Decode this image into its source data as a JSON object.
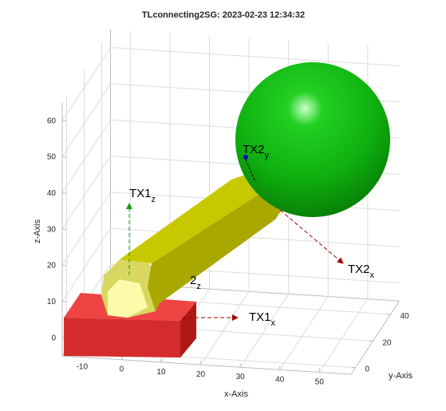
{
  "chart_data": {
    "type": "scene3d",
    "title": "TLconnecting2SG: 2023-02-23 12:34:32",
    "xlabel": "x-Axis",
    "ylabel": "y-Axis",
    "zlabel": "z-Axis",
    "xlim": [
      -15,
      58
    ],
    "ylim": [
      -5,
      50
    ],
    "zlim": [
      -5,
      65
    ],
    "xticks": [
      -10,
      0,
      10,
      20,
      30,
      40,
      50
    ],
    "yticks": [
      0,
      20,
      40
    ],
    "zticks": [
      0,
      10,
      20,
      30,
      40,
      50,
      60
    ],
    "grid": true,
    "annotations": [
      {
        "text": "TX1",
        "sub": "z"
      },
      {
        "text": "TX1",
        "sub": "x"
      },
      {
        "text": "TX2",
        "sub": "x"
      },
      {
        "text": "TX2",
        "sub": "y"
      },
      {
        "text": "2",
        "sub": "z"
      }
    ]
  }
}
